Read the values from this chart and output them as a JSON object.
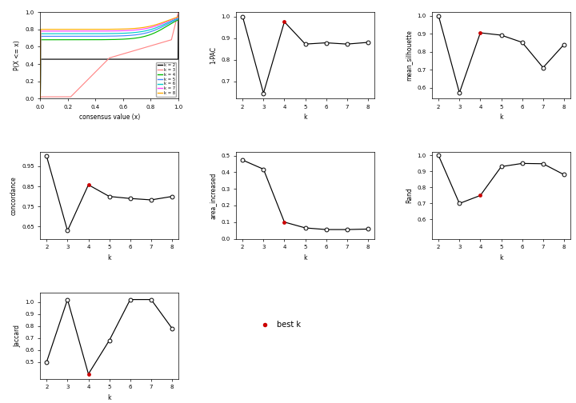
{
  "k_values": [
    2,
    3,
    4,
    5,
    6,
    7,
    8
  ],
  "one_pac": [
    1.0,
    0.645,
    0.975,
    0.872,
    0.878,
    0.872,
    0.88
  ],
  "mean_silhouette": [
    1.0,
    0.572,
    0.905,
    0.892,
    0.852,
    0.712,
    0.84
  ],
  "concordance": [
    1.0,
    0.63,
    0.858,
    0.8,
    0.79,
    0.783,
    0.8
  ],
  "area_increased": [
    0.473,
    0.418,
    0.1,
    0.065,
    0.055,
    0.055,
    0.058
  ],
  "rand": [
    1.0,
    0.7,
    0.75,
    0.93,
    0.95,
    0.948,
    0.88
  ],
  "jaccard": [
    0.5,
    1.02,
    0.4,
    0.68,
    1.02,
    1.02,
    0.78
  ],
  "best_k": 4,
  "ecdf_colors": [
    "#000000",
    "#FF8888",
    "#00BB00",
    "#4488FF",
    "#00CCCC",
    "#FF44FF",
    "#FFAA00"
  ],
  "ecdf_labels": [
    "k = 2",
    "k = 3",
    "k = 4",
    "k = 5",
    "k = 6",
    "k = 7",
    "k = 8"
  ]
}
